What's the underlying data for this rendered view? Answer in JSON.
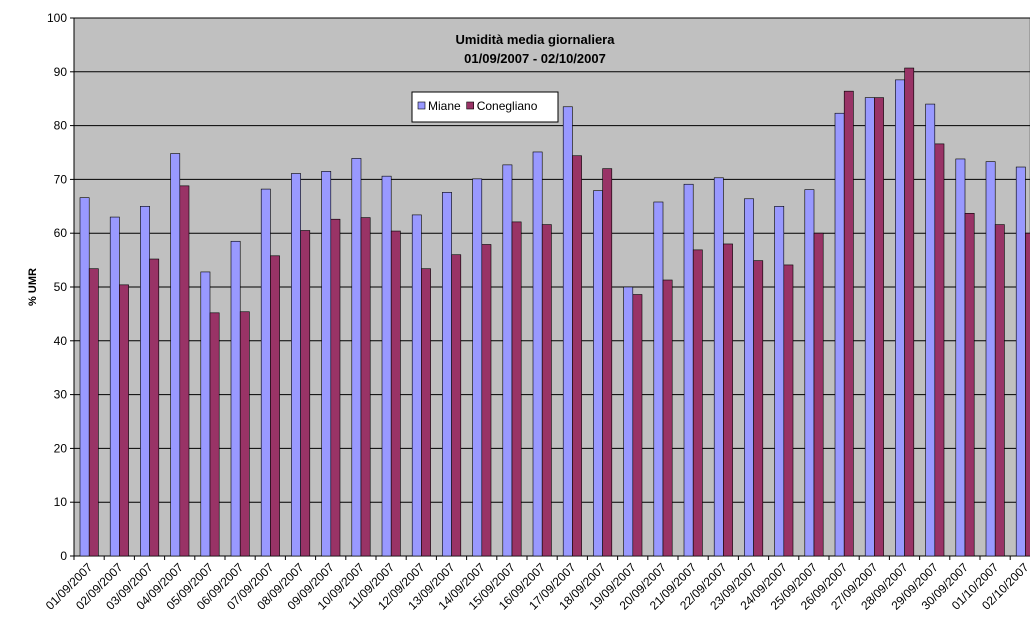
{
  "chart_data": {
    "type": "bar",
    "title": "Umidità media giornaliera",
    "subtitle": "01/09/2007 - 02/10/2007",
    "y_label": "% UMR",
    "categories": [
      "01/09/2007",
      "02/09/2007",
      "03/09/2007",
      "04/09/2007",
      "05/09/2007",
      "06/09/2007",
      "07/09/2007",
      "08/09/2007",
      "09/09/2007",
      "10/09/2007",
      "11/09/2007",
      "12/09/2007",
      "13/09/2007",
      "14/09/2007",
      "15/09/2007",
      "16/09/2007",
      "17/09/2007",
      "18/09/2007",
      "19/09/2007",
      "20/09/2007",
      "21/09/2007",
      "22/09/2007",
      "23/09/2007",
      "24/09/2007",
      "25/09/2007",
      "26/09/2007",
      "27/09/2007",
      "28/09/2007",
      "29/09/2007",
      "30/09/2007",
      "01/10/2007",
      "02/10/2007"
    ],
    "series": [
      {
        "name": "Miane",
        "color": "#9999ff",
        "values": [
          66.6,
          63,
          65,
          74.8,
          52.8,
          58.5,
          68.2,
          71.1,
          71.5,
          73.9,
          70.6,
          63.4,
          67.6,
          70.1,
          72.7,
          75.1,
          83.5,
          67.9,
          50,
          65.8,
          69.1,
          70.3,
          66.4,
          65,
          68.1,
          82.3,
          85.2,
          88.5,
          84,
          73.8,
          73.3,
          72.3
        ]
      },
      {
        "name": "Conegliano",
        "color": "#993366",
        "values": [
          53.4,
          50.4,
          55.2,
          68.8,
          45.2,
          45.4,
          55.8,
          60.5,
          62.6,
          62.9,
          60.4,
          53.4,
          56,
          57.9,
          62.1,
          61.6,
          74.4,
          72,
          48.6,
          51.3,
          56.9,
          58,
          54.9,
          54.1,
          60,
          86.4,
          85.2,
          90.7,
          76.6,
          63.7,
          61.6,
          60
        ]
      }
    ],
    "ylim": [
      0,
      100
    ],
    "yticks": [
      0,
      10,
      20,
      30,
      40,
      50,
      60,
      70,
      80,
      90,
      100
    ],
    "grid": true,
    "legend": "top",
    "background": "#c0c0c0"
  }
}
